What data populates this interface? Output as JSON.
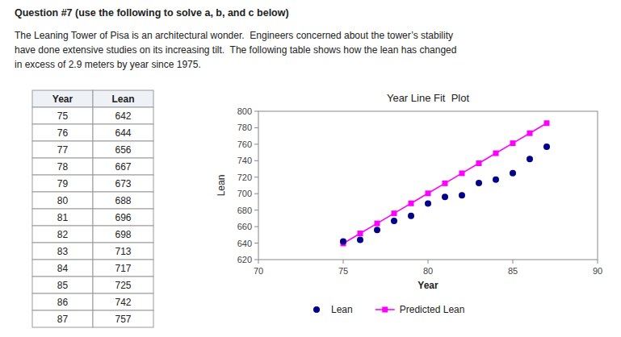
{
  "chart_data": {
    "type": "scatter",
    "title": "Year Line Fit  Plot",
    "annotations": [
      "Question #7 (use the following to solve a, b, and c below)",
      "The Leaning Tower of Pisa is an architectural wonder.  Engineers concerned about the tower’s stability",
      "have done extensive studies on its increasing tilt.  The following table shows how the lean has changed",
      "in excess of 2.9 meters by year since 1975."
    ],
    "xlabel": "Year",
    "ylabel": "Lean",
    "x": [
      75,
      76,
      77,
      78,
      79,
      80,
      81,
      82,
      83,
      84,
      85,
      86,
      87
    ],
    "series": [
      {
        "name": "Lean",
        "type": "scatter",
        "marker": "circle",
        "color": "#00008B",
        "values": [
          642,
          644,
          656,
          667,
          673,
          688,
          696,
          698,
          713,
          717,
          725,
          742,
          757
        ]
      },
      {
        "name": "Predicted Lean",
        "type": "line",
        "marker": "square",
        "line_style": "solid",
        "color": "#FF00FF",
        "values": [
          639.605,
          651.768,
          663.931,
          676.094,
          688.257,
          700.42,
          712.583,
          724.746,
          736.909,
          749.072,
          761.235,
          773.398,
          785.561
        ]
      }
    ],
    "xlim": [
      70,
      90
    ],
    "ylim": [
      620,
      800
    ],
    "xticks": [
      70,
      75,
      80,
      85,
      90
    ],
    "yticks": [
      620,
      640,
      660,
      680,
      700,
      720,
      740,
      760,
      780,
      800
    ],
    "grid": false,
    "legend": "bottom"
  }
}
